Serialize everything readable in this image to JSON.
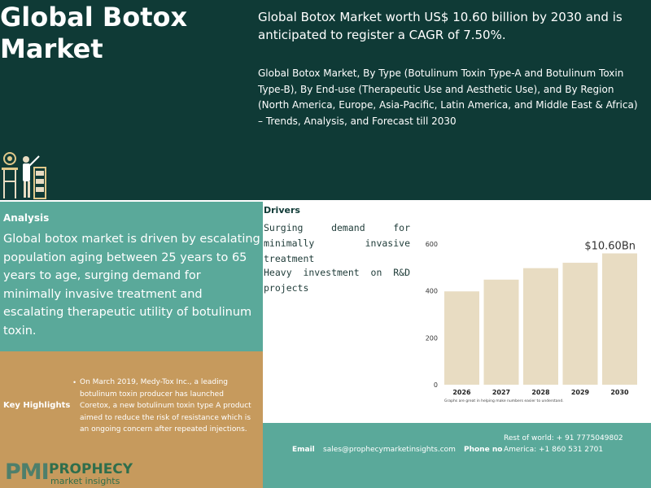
{
  "header": {
    "title_line1": "Global Botox",
    "title_line2": "Market",
    "headline": "Global Botox Market worth US$ 10.60 billion by 2030 and is anticipated to register a CAGR of 7.50%.",
    "subtitle": "Global Botox Market, By Type (Botulinum Toxin Type-A and Botulinum Toxin Type-B), By End-use (Therapeutic Use and Aesthetic Use), and By Region (North America, Europe, Asia-Pacific, Latin America, and Middle East & Africa) – Trends, Analysis, and Forecast till 2030"
  },
  "analysis": {
    "title": "Analysis",
    "body": "Global botox market is driven by escalating population aging between 25 years to 65 years to age, surging demand for minimally invasive treatment and escalating therapeutic utility of botulinum toxin."
  },
  "key_highlights": {
    "title": "Key Highlights",
    "bullet": "•",
    "text": "On March 2019, Medy-Tox Inc., a leading botulinum toxin producer has launched Coretox, a new botulinum toxin type A product aimed to reduce the risk of resistance which is an ongoing concern after repeated injections."
  },
  "drivers": {
    "title": "Drivers",
    "items": [
      "Surging demand for minimally invasive treatment",
      "Heavy investment on R&D projects"
    ]
  },
  "chart_data": {
    "type": "bar",
    "categories": [
      "2026",
      "2027",
      "2028",
      "2029",
      "2030"
    ],
    "values": [
      398,
      448,
      497,
      520,
      560
    ],
    "annotation": "$10.60Bn",
    "yticks": [
      0,
      200,
      400,
      600
    ],
    "ylim": [
      0,
      600
    ],
    "footnote": "Graphs are great in helping make numbers easier to understand.",
    "bar_color": "#e8dcc2",
    "grid": false
  },
  "footer": {
    "email_label": "Email",
    "email": "sales@prophecymarketinsights.com",
    "phone_label": "Phone no",
    "phone_rest": "Rest of world: + 91 7775049802",
    "phone_america": "America: +1 860 531 2701"
  },
  "logo": {
    "mark": "PMI",
    "name": "PROPHECY",
    "tagline": "market insights"
  },
  "colors": {
    "header_bg": "#0f3a36",
    "teal": "#5aa99a",
    "gold": "#c69a5d",
    "bar": "#e8dcc2"
  }
}
